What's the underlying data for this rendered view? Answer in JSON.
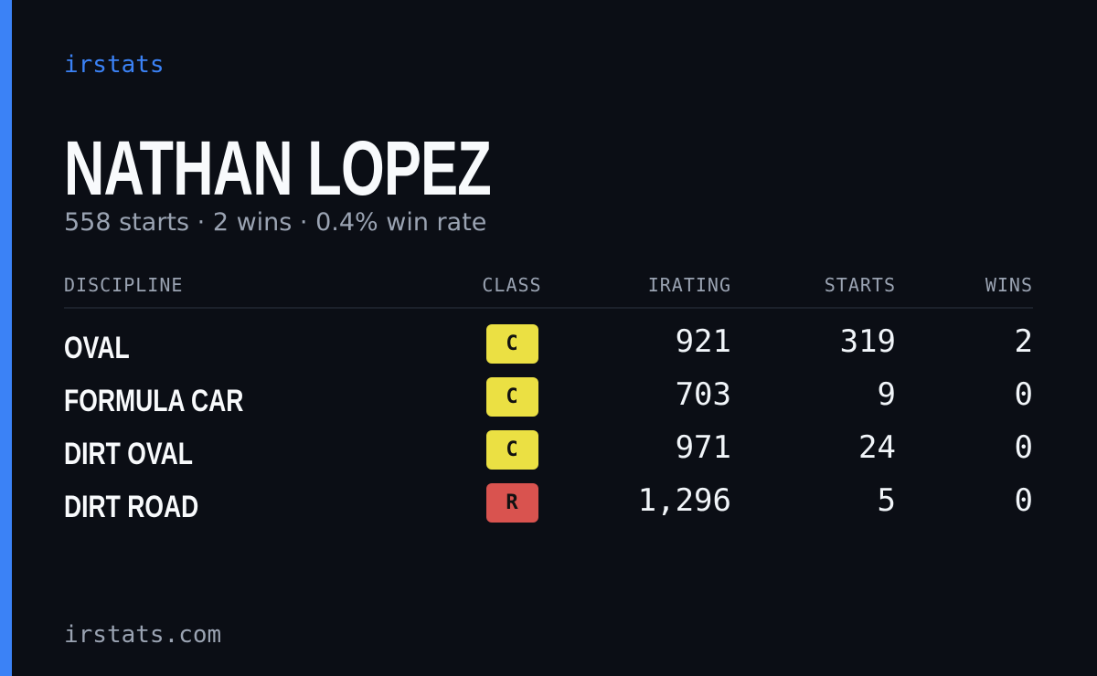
{
  "brand": "irstats",
  "driver_name": "NATHAN LOPEZ",
  "summary": "558 starts · 2 wins · 0.4% win rate",
  "table": {
    "headers": [
      "DISCIPLINE",
      "CLASS",
      "IRATING",
      "STARTS",
      "WINS"
    ],
    "rows": [
      {
        "discipline": "OVAL",
        "class": "C",
        "class_color": "#ebe043",
        "irating": 921,
        "starts": 319,
        "wins": 2
      },
      {
        "discipline": "FORMULA CAR",
        "class": "C",
        "class_color": "#ebe043",
        "irating": 703,
        "starts": 9,
        "wins": 0
      },
      {
        "discipline": "DIRT OVAL",
        "class": "C",
        "class_color": "#ebe043",
        "irating": 971,
        "starts": 24,
        "wins": 0
      },
      {
        "discipline": "DIRT ROAD",
        "class": "R",
        "class_color": "#d9534f",
        "irating": "1,296",
        "starts": 5,
        "wins": 0
      }
    ]
  },
  "footer": "irstats.com"
}
